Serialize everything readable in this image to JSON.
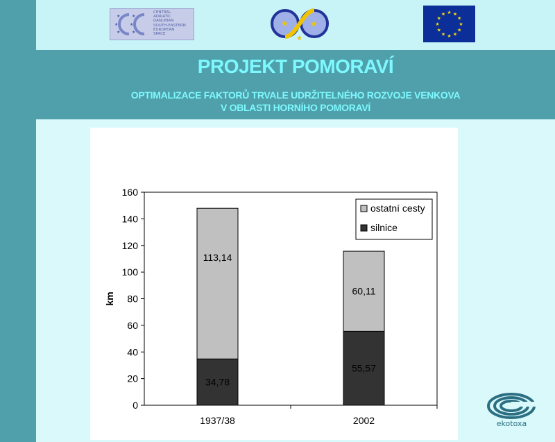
{
  "header": {
    "title": "PROJEKT POMORAVÍ",
    "subtitle_lines": [
      "OPTIMALIZACE FAKTORŮ TRVALE UDRŽITELNÉHO ROZVOJE VENKOVA",
      "V OBLASTI HORNÍHO POMORAVÍ"
    ]
  },
  "logos": {
    "cadses_text": "CENTRAL\nADRIATIC\nDANUBIAN\nSOUTH-EASTERN\nEUROPEAN\nSPACE",
    "ekotoxa_label": "ekotoxa"
  },
  "colors": {
    "side_band": "#4fa0aa",
    "title_text": "#7ef8ff",
    "series_light": "#c0c0c0",
    "series_dark": "#333333"
  },
  "chart_data": {
    "type": "bar",
    "stacked": true,
    "categories": [
      "1937/38",
      "2002"
    ],
    "series": [
      {
        "name": "silnice",
        "values": [
          34.78,
          55.57
        ],
        "labels": [
          "34,78",
          "55,57"
        ],
        "color": "#333333"
      },
      {
        "name": "ostatní cesty",
        "values": [
          113.14,
          60.11
        ],
        "labels": [
          "113,14",
          "60,11"
        ],
        "color": "#c0c0c0"
      }
    ],
    "legend_order": [
      "ostatní cesty",
      "silnice"
    ],
    "ylabel": "km",
    "ylim": [
      0,
      160
    ],
    "yticks": [
      "0",
      "20",
      "40",
      "60",
      "80",
      "100",
      "120",
      "140",
      "160"
    ],
    "ytick_values": [
      0,
      20,
      40,
      60,
      80,
      100,
      120,
      140,
      160
    ],
    "grid": false,
    "legend_position": "top-right"
  }
}
